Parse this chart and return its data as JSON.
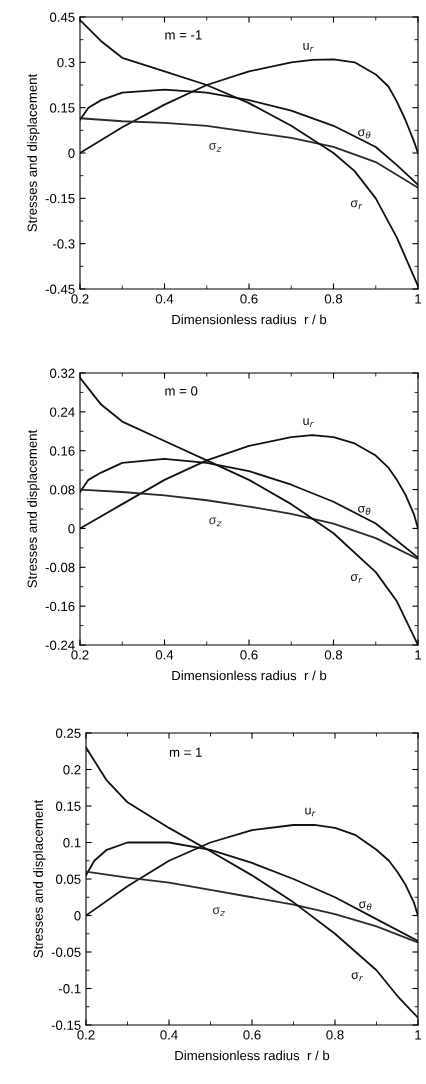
{
  "chart_data": [
    {
      "type": "line",
      "xlabel": "Dimensionless radius  r / b",
      "ylabel": "Stresses and displacement",
      "annotations": [
        "m = -1"
      ],
      "xlim": [
        0.2,
        1
      ],
      "ylim": [
        -0.45,
        0.45
      ],
      "xticks": [
        0.2,
        0.4,
        0.6,
        0.8,
        1
      ],
      "yticks": [
        -0.45,
        -0.3,
        -0.15,
        0,
        0.15,
        0.3,
        0.45
      ],
      "grid": false,
      "series": [
        {
          "name": "u$_{r}$",
          "color": "#111111",
          "x": [
            0.2,
            0.3,
            0.4,
            0.5,
            0.6,
            0.7,
            0.75,
            0.8,
            0.85,
            0.9,
            0.93,
            0.95,
            0.97,
            0.99,
            1.0
          ],
          "values": [
            0,
            0.085,
            0.16,
            0.225,
            0.27,
            0.3,
            0.308,
            0.31,
            0.3,
            0.26,
            0.22,
            0.17,
            0.11,
            0.04,
            0
          ]
        },
        {
          "name": "σ$_{θ}$",
          "color": "#111111",
          "x": [
            0.2,
            0.22,
            0.25,
            0.3,
            0.4,
            0.5,
            0.6,
            0.7,
            0.8,
            0.9,
            0.95,
            1.0
          ],
          "values": [
            0.11,
            0.15,
            0.175,
            0.2,
            0.21,
            0.2,
            0.175,
            0.14,
            0.09,
            0.02,
            -0.04,
            -0.105
          ]
        },
        {
          "name": "σ$_{z}$",
          "color": "#2a2a2a",
          "x": [
            0.2,
            0.3,
            0.4,
            0.5,
            0.6,
            0.7,
            0.8,
            0.9,
            1.0
          ],
          "values": [
            0.115,
            0.105,
            0.1,
            0.09,
            0.07,
            0.05,
            0.02,
            -0.03,
            -0.115
          ]
        },
        {
          "name": "σ$_{r}$",
          "color": "#111111",
          "x": [
            0.2,
            0.25,
            0.3,
            0.4,
            0.5,
            0.6,
            0.7,
            0.8,
            0.85,
            0.9,
            0.95,
            1.0
          ],
          "values": [
            0.44,
            0.37,
            0.315,
            0.27,
            0.225,
            0.165,
            0.09,
            0.0,
            -0.06,
            -0.15,
            -0.28,
            -0.44
          ]
        }
      ]
    },
    {
      "type": "line",
      "xlabel": "Dimensionless radius  r / b",
      "ylabel": "Stresses and displacement",
      "annotations": [
        "m = 0"
      ],
      "xlim": [
        0.2,
        1
      ],
      "ylim": [
        -0.24,
        0.32
      ],
      "xticks": [
        0.2,
        0.4,
        0.6,
        0.8,
        1
      ],
      "yticks": [
        -0.24,
        -0.16,
        -0.08,
        0,
        0.08,
        0.16,
        0.24,
        0.32
      ],
      "grid": false,
      "series": [
        {
          "name": "u$_{r}$",
          "color": "#111111",
          "x": [
            0.2,
            0.3,
            0.4,
            0.5,
            0.6,
            0.7,
            0.75,
            0.8,
            0.85,
            0.9,
            0.93,
            0.95,
            0.97,
            0.99,
            1.0
          ],
          "values": [
            0,
            0.05,
            0.1,
            0.14,
            0.17,
            0.188,
            0.192,
            0.188,
            0.175,
            0.15,
            0.125,
            0.1,
            0.07,
            0.03,
            0
          ]
        },
        {
          "name": "σ$_{θ}$",
          "color": "#111111",
          "x": [
            0.2,
            0.22,
            0.25,
            0.3,
            0.4,
            0.5,
            0.6,
            0.7,
            0.8,
            0.9,
            1.0
          ],
          "values": [
            0.075,
            0.1,
            0.115,
            0.135,
            0.143,
            0.135,
            0.118,
            0.09,
            0.055,
            0.01,
            -0.06
          ]
        },
        {
          "name": "σ$_{z}$",
          "color": "#2a2a2a",
          "x": [
            0.2,
            0.3,
            0.4,
            0.5,
            0.6,
            0.7,
            0.8,
            0.9,
            1.0
          ],
          "values": [
            0.08,
            0.075,
            0.068,
            0.058,
            0.045,
            0.03,
            0.01,
            -0.02,
            -0.063
          ]
        },
        {
          "name": "σ$_{r}$",
          "color": "#111111",
          "x": [
            0.2,
            0.25,
            0.3,
            0.4,
            0.5,
            0.6,
            0.7,
            0.8,
            0.9,
            0.95,
            1.0
          ],
          "values": [
            0.31,
            0.255,
            0.22,
            0.18,
            0.14,
            0.1,
            0.05,
            -0.01,
            -0.09,
            -0.15,
            -0.24
          ]
        }
      ]
    },
    {
      "type": "line",
      "xlabel": "Dimensionless radius  r / b",
      "ylabel": "Stresses and displacement",
      "annotations": [
        "m = 1"
      ],
      "xlim": [
        0.2,
        1
      ],
      "ylim": [
        -0.15,
        0.25
      ],
      "xticks": [
        0.2,
        0.4,
        0.6,
        0.8,
        1
      ],
      "yticks": [
        -0.15,
        -0.1,
        -0.05,
        0,
        0.05,
        0.1,
        0.15,
        0.2,
        0.25
      ],
      "grid": false,
      "series": [
        {
          "name": "u$_{r}$",
          "color": "#111111",
          "x": [
            0.2,
            0.3,
            0.4,
            0.5,
            0.6,
            0.7,
            0.75,
            0.8,
            0.85,
            0.9,
            0.93,
            0.95,
            0.97,
            0.99,
            1.0
          ],
          "values": [
            0,
            0.04,
            0.075,
            0.1,
            0.117,
            0.124,
            0.124,
            0.12,
            0.11,
            0.09,
            0.075,
            0.06,
            0.042,
            0.018,
            0
          ]
        },
        {
          "name": "σ$_{θ}$",
          "color": "#111111",
          "x": [
            0.2,
            0.22,
            0.25,
            0.3,
            0.4,
            0.5,
            0.6,
            0.7,
            0.8,
            0.9,
            1.0
          ],
          "values": [
            0.055,
            0.075,
            0.09,
            0.1,
            0.1,
            0.09,
            0.072,
            0.05,
            0.025,
            -0.005,
            -0.035
          ]
        },
        {
          "name": "σ$_{z}$",
          "color": "#2a2a2a",
          "x": [
            0.2,
            0.3,
            0.4,
            0.5,
            0.6,
            0.7,
            0.8,
            0.9,
            1.0
          ],
          "values": [
            0.06,
            0.052,
            0.045,
            0.035,
            0.025,
            0.015,
            0.002,
            -0.015,
            -0.037
          ]
        },
        {
          "name": "σ$_{r}$",
          "color": "#111111",
          "x": [
            0.2,
            0.25,
            0.3,
            0.4,
            0.5,
            0.6,
            0.7,
            0.8,
            0.9,
            0.95,
            1.0
          ],
          "values": [
            0.23,
            0.185,
            0.155,
            0.12,
            0.088,
            0.055,
            0.018,
            -0.025,
            -0.075,
            -0.11,
            -0.14
          ]
        }
      ]
    }
  ]
}
